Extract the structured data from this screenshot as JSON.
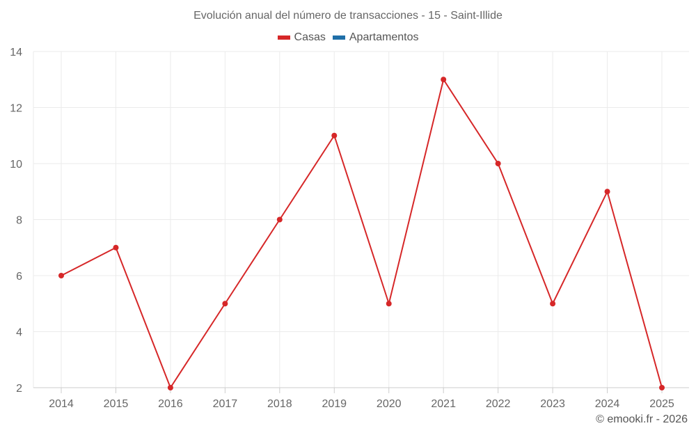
{
  "chart_data": {
    "type": "line",
    "title": "Evolución anual del número de transacciones - 15 - Saint-Illide",
    "xlabel": "",
    "ylabel": "",
    "categories": [
      "2014",
      "2015",
      "2016",
      "2017",
      "2018",
      "2019",
      "2020",
      "2021",
      "2022",
      "2023",
      "2024",
      "2025"
    ],
    "series": [
      {
        "name": "Casas",
        "color": "#d62728",
        "values": [
          6,
          7,
          2,
          5,
          8,
          11,
          5,
          13,
          10,
          5,
          9,
          2
        ]
      },
      {
        "name": "Apartamentos",
        "color": "#1f6fa8",
        "values": []
      }
    ],
    "ylim": [
      2,
      14
    ],
    "yticks": [
      2,
      4,
      6,
      8,
      10,
      12,
      14
    ],
    "grid": true,
    "legend_position": "top"
  },
  "legend": [
    {
      "label": "Casas",
      "color": "#d62728"
    },
    {
      "label": "Apartamentos",
      "color": "#1f6fa8"
    }
  ],
  "credit": "© emooki.fr - 2026"
}
